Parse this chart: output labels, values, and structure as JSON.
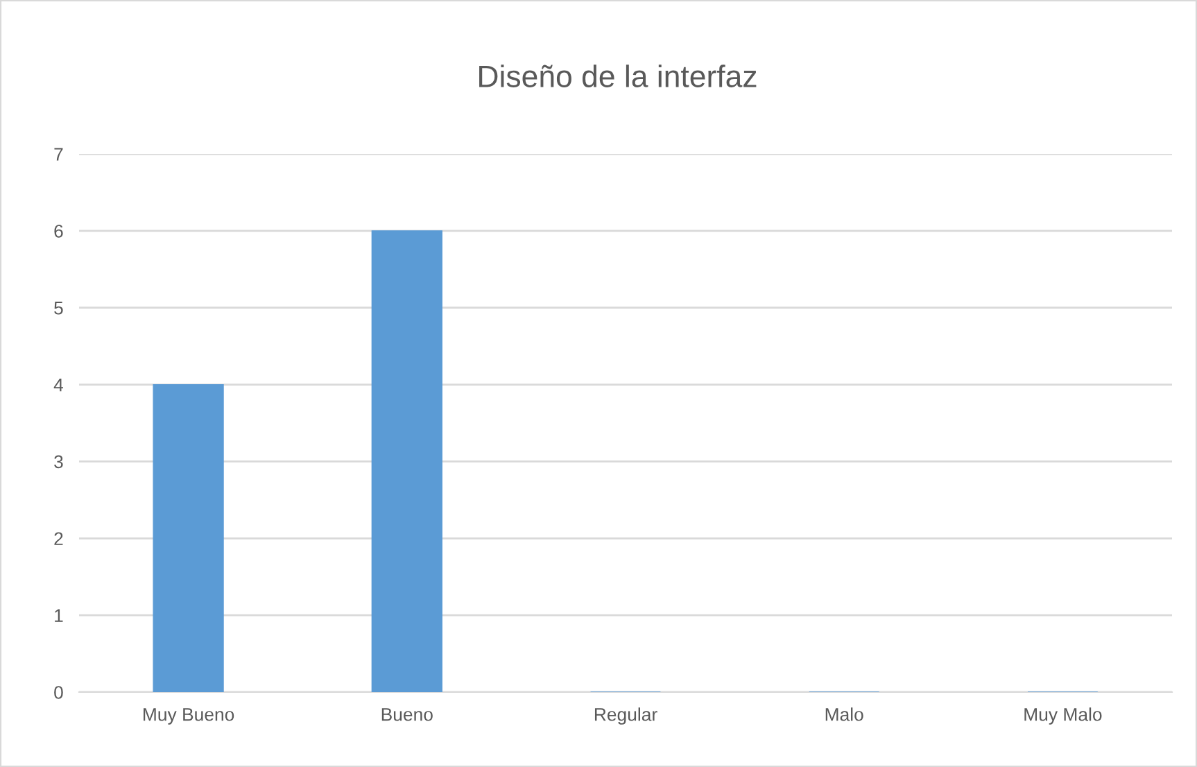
{
  "chart_data": {
    "type": "bar",
    "title": "Diseño de la interfaz",
    "categories": [
      "Muy Bueno",
      "Bueno",
      "Regular",
      "Malo",
      "Muy Malo"
    ],
    "values": [
      4,
      6,
      0,
      0,
      0
    ],
    "color": "#5b9bd5",
    "ylim": [
      0,
      7
    ],
    "yticks": [
      0,
      1,
      2,
      3,
      4,
      5,
      6,
      7
    ],
    "grid": "y",
    "legend": false
  }
}
